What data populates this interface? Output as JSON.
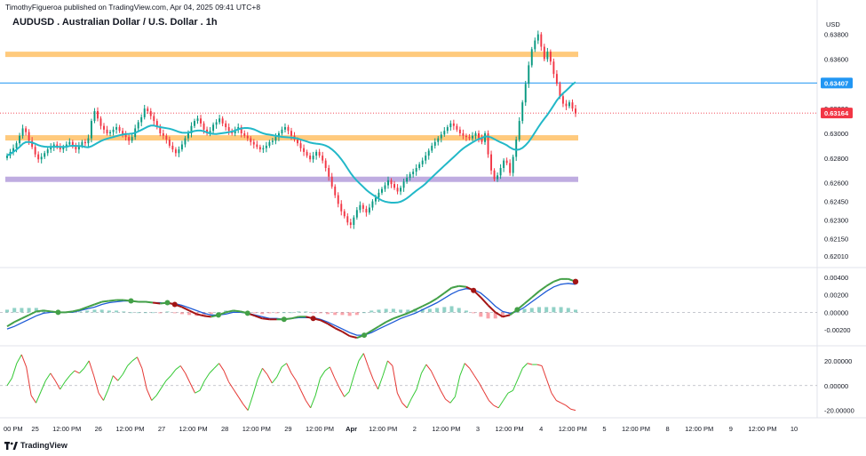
{
  "header": {
    "publisher": "TimothyFigueroa published on TradingView.com, Apr 04, 2025 09:41 UTC+8",
    "symbol_title": "AUDUSD . Australian Dollar / U.S. Dollar . 1h",
    "brand": "TradingView",
    "currency": "USD"
  },
  "colors": {
    "up": "#089981",
    "down": "#f23645",
    "ma": "#22b8c8",
    "zone_orange": "#ffa726",
    "zone_purple": "#9575cd",
    "price_line": "#2196f3",
    "last_price": "#f23645",
    "macd_fast": "#43a047",
    "macd_slow": "#1e5bd6",
    "macd_dark": "#a31515",
    "osc_up": "#35c935",
    "osc_down": "#e53935"
  },
  "chart_data": [
    {
      "type": "candlestick",
      "title": "AUDUSD . Australian Dollar / U.S. Dollar . 1h",
      "x_tick_labels": [
        "00 PM",
        "25",
        "12:00 PM",
        "26",
        "12:00 PM",
        "27",
        "12:00 PM",
        "28",
        "12:00 PM",
        "29",
        "12:00 PM",
        "Apr",
        "12:00 PM",
        "2",
        "12:00 PM",
        "3",
        "12:00 PM",
        "4",
        "12:00 PM",
        "5",
        "12:00 PM",
        "8",
        "12:00 PM",
        "9",
        "12:00 PM",
        "10"
      ],
      "y_tick_labels": [
        "0.63800",
        "0.63600",
        "0.63200",
        "0.63000",
        "0.62800",
        "0.62600",
        "0.62450",
        "0.62300",
        "0.62150",
        "0.62010"
      ],
      "ylim": [
        0.6198,
        0.6402
      ],
      "y_ticks": [
        0.638,
        0.636,
        0.632,
        0.63,
        0.628,
        0.626,
        0.6245,
        0.623,
        0.6215,
        0.6201
      ],
      "price_line": {
        "value": 0.63407,
        "label": "0.63407"
      },
      "last_price": {
        "value": 0.63164,
        "label": "0.63164"
      },
      "zones": [
        {
          "color": "orange",
          "from": 0.6362,
          "to": 0.6366
        },
        {
          "color": "orange",
          "from": 0.62945,
          "to": 0.62985
        },
        {
          "color": "purple",
          "from": 0.6261,
          "to": 0.6265
        }
      ],
      "series": [
        {
          "kind": "ohlc_approx",
          "close": [
            0.6282,
            0.6285,
            0.6288,
            0.6292,
            0.6298,
            0.6304,
            0.6301,
            0.6294,
            0.6289,
            0.6283,
            0.6279,
            0.6281,
            0.6284,
            0.6287,
            0.6289,
            0.6291,
            0.6289,
            0.6287,
            0.6289,
            0.6291,
            0.6293,
            0.629,
            0.6287,
            0.629,
            0.6293,
            0.6292,
            0.6296,
            0.631,
            0.6318,
            0.6312,
            0.6306,
            0.6303,
            0.63,
            0.6301,
            0.6303,
            0.6305,
            0.6302,
            0.6299,
            0.6297,
            0.6294,
            0.6297,
            0.6304,
            0.6309,
            0.6313,
            0.632,
            0.6318,
            0.6314,
            0.631,
            0.6305,
            0.63,
            0.6298,
            0.6295,
            0.629,
            0.6287,
            0.6284,
            0.6287,
            0.6291,
            0.6296,
            0.63,
            0.6306,
            0.631,
            0.6312,
            0.6308,
            0.6303,
            0.63,
            0.6302,
            0.6307,
            0.6309,
            0.6312,
            0.6308,
            0.6305,
            0.6302,
            0.63,
            0.6303,
            0.6305,
            0.63,
            0.6298,
            0.6296,
            0.6293,
            0.6291,
            0.6289,
            0.6287,
            0.6288,
            0.629,
            0.6293,
            0.6294,
            0.6297,
            0.63,
            0.6303,
            0.6305,
            0.6302,
            0.6298,
            0.6295,
            0.6292,
            0.6288,
            0.6285,
            0.6282,
            0.6279,
            0.6282,
            0.6285,
            0.6282,
            0.6278,
            0.6272,
            0.6265,
            0.6257,
            0.625,
            0.6243,
            0.6237,
            0.6233,
            0.6228,
            0.6226,
            0.6232,
            0.6238,
            0.6242,
            0.6239,
            0.6236,
            0.624,
            0.6245,
            0.6248,
            0.6252,
            0.6255,
            0.6258,
            0.6262,
            0.6259,
            0.6256,
            0.6253,
            0.6256,
            0.6261,
            0.6264,
            0.6267,
            0.6269,
            0.6272,
            0.6275,
            0.6278,
            0.6282,
            0.6286,
            0.629,
            0.6293,
            0.6296,
            0.6299,
            0.6302,
            0.6305,
            0.6308,
            0.6306,
            0.6303,
            0.63,
            0.6298,
            0.6297,
            0.6296,
            0.6298,
            0.63,
            0.6296,
            0.6293,
            0.63,
            0.6283,
            0.627,
            0.6263,
            0.6266,
            0.6272,
            0.6278,
            0.6276,
            0.6268,
            0.6281,
            0.6295,
            0.631,
            0.6325,
            0.634,
            0.6355,
            0.6368,
            0.6375,
            0.638,
            0.637,
            0.636,
            0.6366,
            0.6358,
            0.6348,
            0.634,
            0.633,
            0.6324,
            0.6322,
            0.6325,
            0.632,
            0.6316
          ]
        }
      ]
    },
    {
      "type": "line",
      "title": "",
      "y_tick_labels": [
        "0.00400",
        "0.00200",
        "0.00000",
        "-0.00200"
      ],
      "ylim": [
        -0.0031,
        0.0049
      ],
      "y_ticks": [
        0.004,
        0.002,
        0.0,
        -0.002
      ],
      "series": [
        {
          "kind": "fast",
          "values": [
            -0.0016,
            -0.0011,
            -0.0007,
            -0.0003,
            0.0001,
            0.0002,
            0.0001,
            0.0,
            0.0,
            0.0001,
            0.0003,
            0.0006,
            0.0009,
            0.0012,
            0.0013,
            0.0014,
            0.0014,
            0.0013,
            0.0012,
            0.0012,
            0.0011,
            0.001,
            0.0011,
            0.0009,
            0.0006,
            0.0002,
            -0.0002,
            -0.0004,
            -0.0005,
            -0.0003,
            0.0,
            0.0002,
            0.0001,
            -0.0001,
            -0.0004,
            -0.0007,
            -0.0008,
            -0.0008,
            -0.0008,
            -0.0007,
            -0.0005,
            -0.0005,
            -0.0007,
            -0.0009,
            -0.0013,
            -0.0018,
            -0.0022,
            -0.0027,
            -0.0029,
            -0.0026,
            -0.0021,
            -0.0016,
            -0.0011,
            -0.0007,
            -0.0004,
            -0.0001,
            0.0003,
            0.0007,
            0.0011,
            0.0016,
            0.0022,
            0.0028,
            0.003,
            0.0029,
            0.0025,
            0.0017,
            0.0008,
            0.0,
            -0.0005,
            -0.0003,
            0.0003,
            0.001,
            0.0017,
            0.0024,
            0.003,
            0.0035,
            0.0038,
            0.0038,
            0.0035
          ]
        },
        {
          "kind": "slow",
          "values": [
            -0.0019,
            -0.0016,
            -0.0012,
            -0.0008,
            -0.0004,
            -0.0001,
            0.0,
            0.0,
            0.0,
            0.0,
            0.0002,
            0.0004,
            0.0006,
            0.0009,
            0.0011,
            0.0012,
            0.0013,
            0.0013,
            0.0012,
            0.0012,
            0.0011,
            0.0011,
            0.001,
            0.001,
            0.0008,
            0.0005,
            0.0002,
            -0.0001,
            -0.0003,
            -0.0003,
            -0.0002,
            0.0,
            0.0,
            -0.0001,
            -0.0003,
            -0.0005,
            -0.0007,
            -0.0007,
            -0.0008,
            -0.0007,
            -0.0006,
            -0.0006,
            -0.0006,
            -0.0008,
            -0.0011,
            -0.0015,
            -0.0019,
            -0.0023,
            -0.0026,
            -0.0026,
            -0.0023,
            -0.0019,
            -0.0015,
            -0.0011,
            -0.0007,
            -0.0004,
            -0.0001,
            0.0003,
            0.0007,
            0.0011,
            0.0016,
            0.0021,
            0.0025,
            0.0027,
            0.0026,
            0.0022,
            0.0015,
            0.0007,
            0.0001,
            -0.0001,
            0.0001,
            0.0006,
            0.0012,
            0.0018,
            0.0024,
            0.0029,
            0.0032,
            0.0033,
            0.0032
          ]
        }
      ]
    },
    {
      "type": "line",
      "title": "",
      "y_tick_labels": [
        "20.00000",
        "0.00000",
        "-20.00000"
      ],
      "ylim": [
        -26,
        30
      ],
      "y_ticks": [
        20,
        0,
        -20
      ],
      "series": [
        {
          "kind": "oscillator",
          "values": [
            0,
            6,
            18,
            25,
            15,
            -8,
            -14,
            -5,
            4,
            10,
            4,
            -3,
            3,
            8,
            12,
            10,
            14,
            20,
            8,
            -6,
            -12,
            -3,
            8,
            4,
            9,
            16,
            20,
            23,
            14,
            -3,
            -12,
            -8,
            -2,
            4,
            8,
            13,
            16,
            10,
            2,
            -6,
            -4,
            4,
            10,
            14,
            18,
            12,
            3,
            -3,
            -9,
            -15,
            -20,
            -8,
            5,
            14,
            9,
            2,
            7,
            15,
            18,
            10,
            4,
            -4,
            -12,
            -18,
            -8,
            6,
            12,
            15,
            6,
            -2,
            -9,
            -5,
            8,
            20,
            26,
            15,
            5,
            -3,
            8,
            20,
            16,
            -6,
            -14,
            -18,
            -10,
            -3,
            10,
            17,
            12,
            4,
            -4,
            -11,
            -14,
            -9,
            8,
            18,
            14,
            8,
            2,
            -5,
            -12,
            -16,
            -18,
            -12,
            -6,
            -4,
            5,
            14,
            18,
            17,
            17,
            16,
            5,
            -6,
            -12,
            -14,
            -16,
            -19,
            -20
          ]
        }
      ]
    }
  ]
}
